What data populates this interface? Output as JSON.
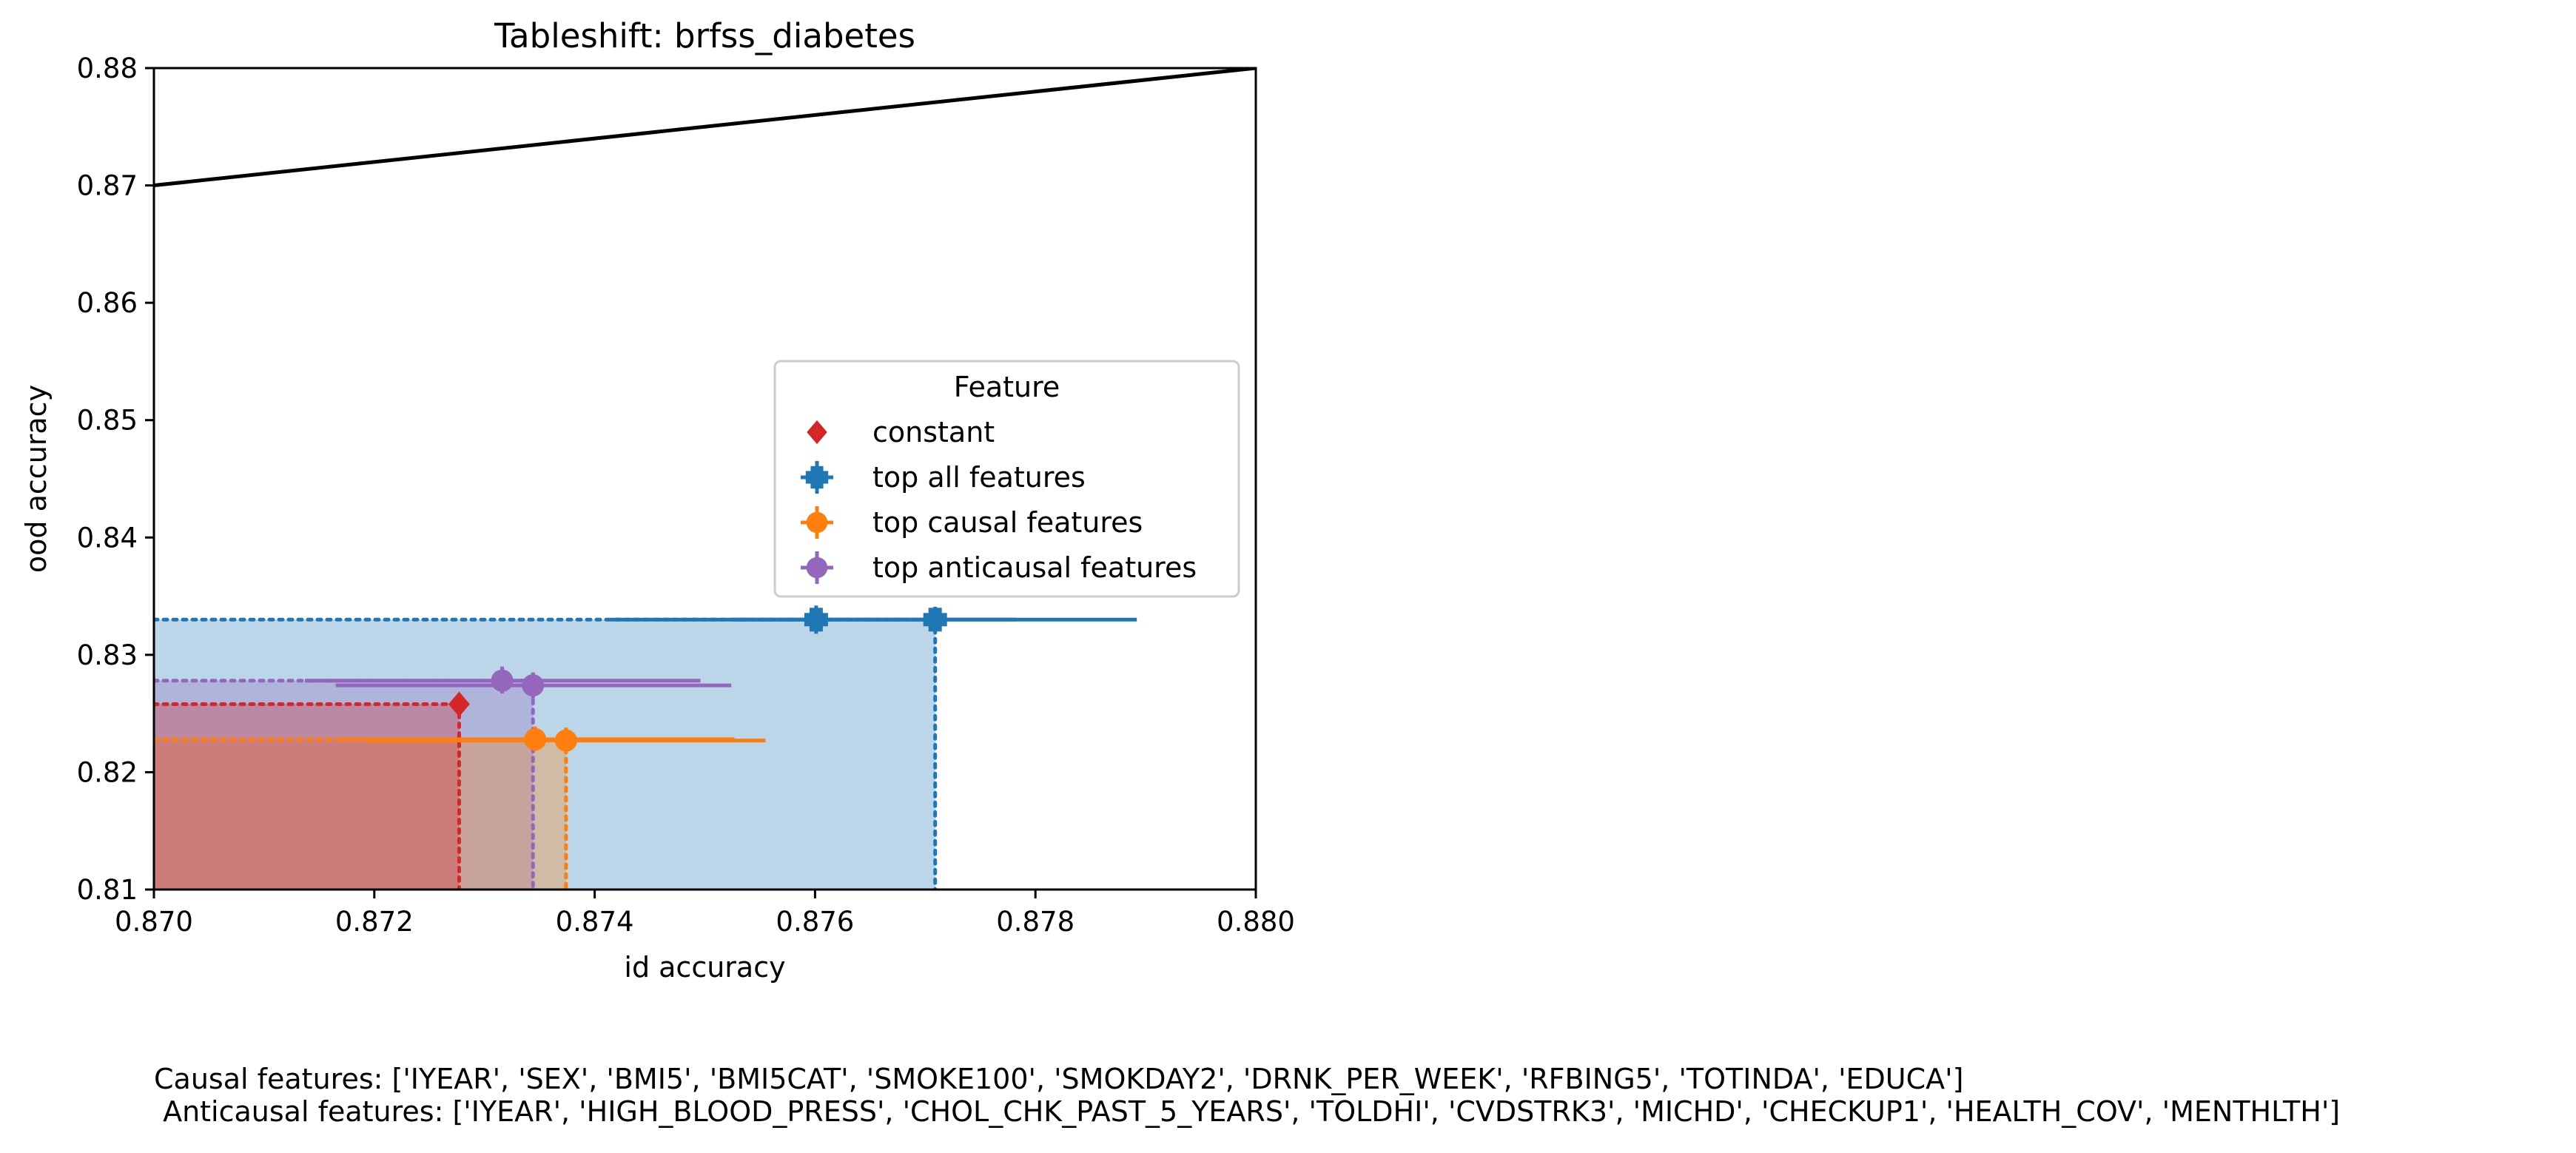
{
  "chart_data": {
    "type": "scatter",
    "title": "Tableshift: brfss_diabetes",
    "xlabel": "id accuracy",
    "ylabel": "ood accuracy",
    "xlim": [
      0.87,
      0.88
    ],
    "ylim": [
      0.81,
      0.88
    ],
    "xticks": [
      "0.870",
      "0.872",
      "0.874",
      "0.876",
      "0.878",
      "0.880"
    ],
    "yticks": [
      "0.81",
      "0.82",
      "0.83",
      "0.84",
      "0.85",
      "0.86",
      "0.87",
      "0.88"
    ],
    "grid": false,
    "diagonal_line": {
      "x": [
        0.87,
        0.88
      ],
      "y": [
        0.87,
        0.88
      ],
      "color": "#000000"
    },
    "legend": {
      "title": "Feature",
      "position": "center-right",
      "entries": [
        "constant",
        "top all features",
        "top causal features",
        "top anticausal features"
      ]
    },
    "series": [
      {
        "name": "constant",
        "color": "#d62728",
        "marker": "diamond",
        "points": [
          {
            "x": 0.87277,
            "y": 0.8258,
            "xerr": [
              0,
              0
            ],
            "yerr": [
              0,
              0
            ]
          }
        ],
        "frontier": {
          "x": 0.87277,
          "y": 0.8258
        }
      },
      {
        "name": "top all features",
        "color": "#1f77b4",
        "marker": "plus",
        "points": [
          {
            "x": 0.87601,
            "y": 0.833,
            "xerr": [
              0.87414,
              0.87783
            ],
            "yerr": [
              0.8318,
              0.8342
            ]
          },
          {
            "x": 0.87709,
            "y": 0.833,
            "xerr": [
              0.87526,
              0.87892
            ],
            "yerr": [
              0.8319,
              0.8341
            ]
          }
        ],
        "frontier": {
          "x": 0.87709,
          "y": 0.833
        }
      },
      {
        "name": "top causal features",
        "color": "#ff7f0e",
        "marker": "circle",
        "points": [
          {
            "x": 0.87346,
            "y": 0.8228,
            "xerr": [
              0.87166,
              0.87527
            ],
            "yerr": [
              0.8218,
              0.8239
            ]
          },
          {
            "x": 0.87374,
            "y": 0.8227,
            "xerr": [
              0.87193,
              0.87555
            ],
            "yerr": [
              0.8216,
              0.8238
            ]
          }
        ],
        "frontier": {
          "x": 0.87374,
          "y": 0.8228
        }
      },
      {
        "name": "top anticausal features",
        "color": "#9467bd",
        "marker": "circle",
        "points": [
          {
            "x": 0.87316,
            "y": 0.8278,
            "xerr": [
              0.87137,
              0.87496
            ],
            "yerr": [
              0.8267,
              0.829
            ]
          },
          {
            "x": 0.87344,
            "y": 0.8274,
            "xerr": [
              0.87165,
              0.87524
            ],
            "yerr": [
              0.8263,
              0.8285
            ]
          }
        ],
        "frontier": {
          "x": 0.87344,
          "y": 0.8278
        }
      }
    ]
  },
  "footnote": {
    "causal": "Causal features: ['IYEAR', 'SEX', 'BMI5', 'BMI5CAT', 'SMOKE100', 'SMOKDAY2', 'DRNK_PER_WEEK', 'RFBING5', 'TOTINDA', 'EDUCA']",
    "anticausal": " Anticausal features: ['IYEAR', 'HIGH_BLOOD_PRESS', 'CHOL_CHK_PAST_5_YEARS', 'TOLDHI', 'CVDSTRK3', 'MICHD', 'CHECKUP1', 'HEALTH_COV', 'MENTHLTH']"
  }
}
